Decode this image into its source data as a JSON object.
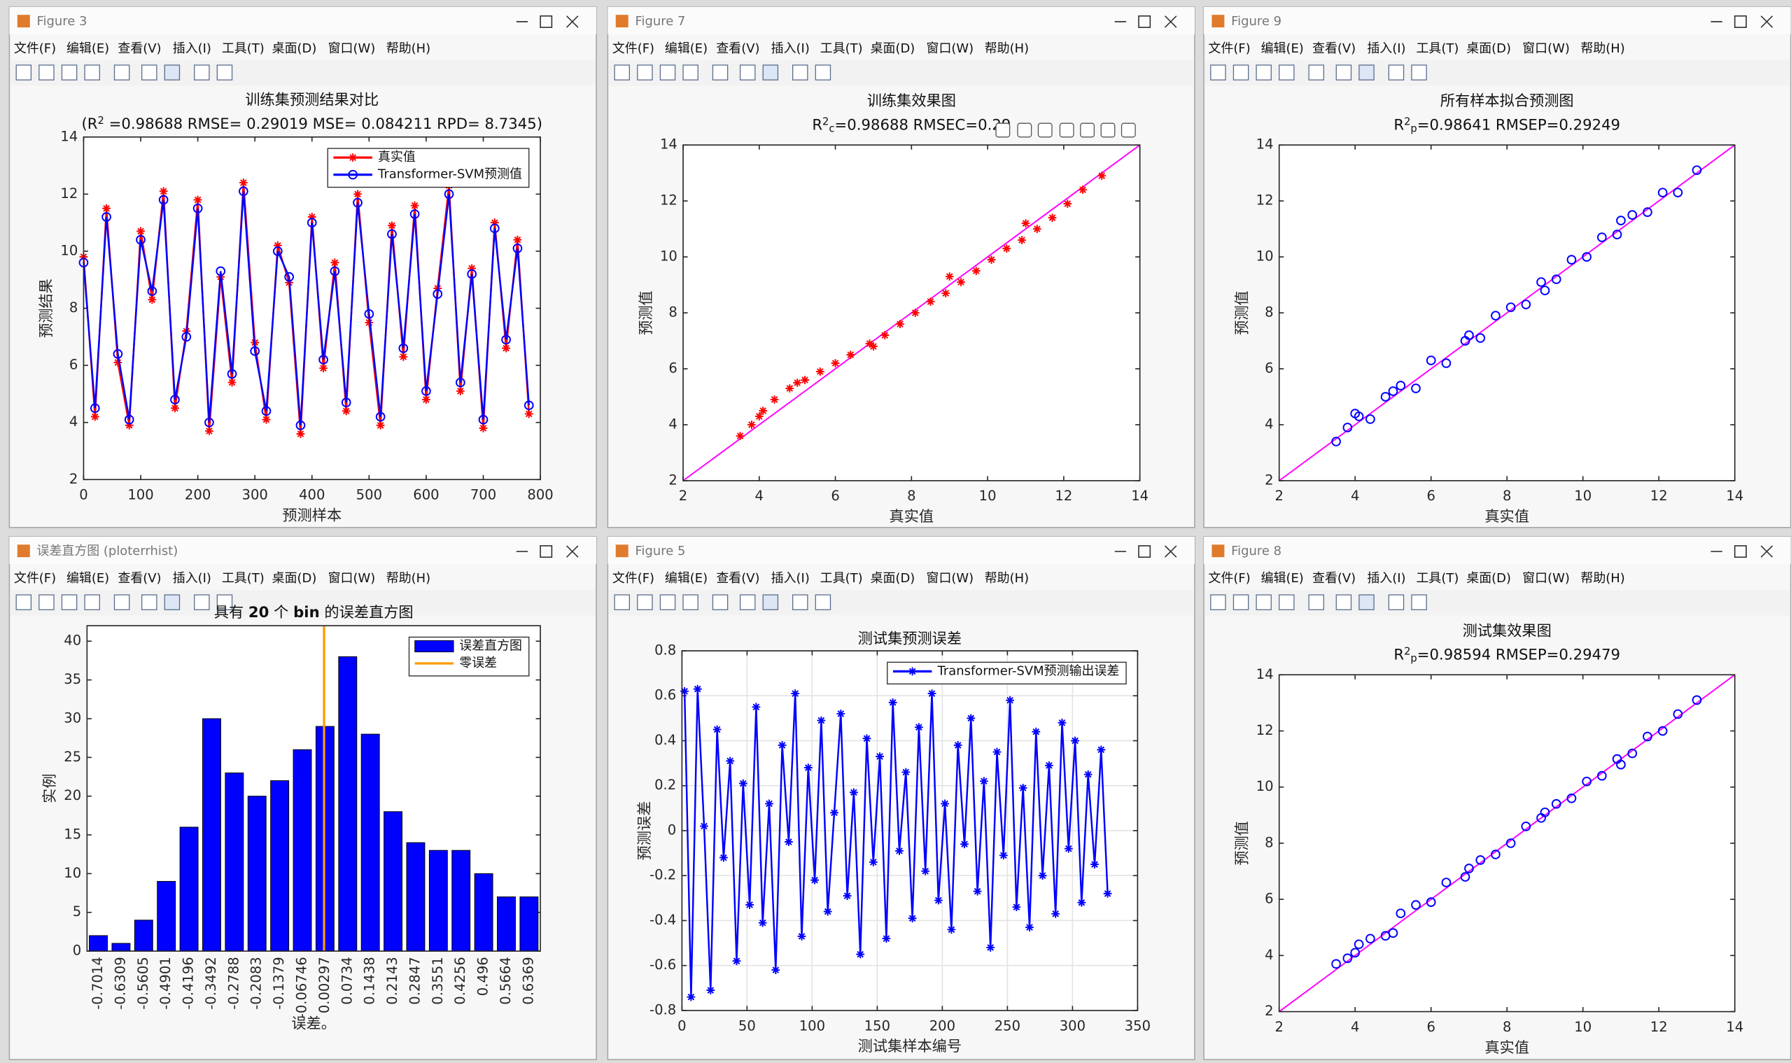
{
  "menu": [
    "文件(F)",
    "编辑(E)",
    "查看(V)",
    "插入(I)",
    "工具(T)",
    "桌面(D)",
    "窗口(W)",
    "帮助(H)"
  ],
  "windows": [
    {
      "title": "Figure 3"
    },
    {
      "title": "Figure 7",
      "active": true
    },
    {
      "title": "Figure 9"
    },
    {
      "title": "误差直方图 (ploterrhist)"
    },
    {
      "title": "Figure 5"
    },
    {
      "title": "Figure 8"
    }
  ],
  "chart_data": [
    {
      "type": "line",
      "title": "训练集预测结果对比",
      "subtitle": [
        {
          "text": "(R"
        },
        {
          "text": "2",
          "shift": "super"
        },
        {
          "text": " =0.98688 RMSE= 0.29019 MSE= 0.084211 RPD= 8.7345)"
        }
      ],
      "xlabel": "预测样本",
      "ylabel": "预测结果",
      "x": [
        0,
        20,
        40,
        60,
        80,
        100,
        120,
        140,
        160,
        180,
        200,
        220,
        240,
        260,
        280,
        300,
        320,
        340,
        360,
        380,
        400,
        420,
        440,
        460,
        480,
        500,
        520,
        540,
        560,
        580,
        600,
        620,
        640,
        660,
        680,
        700,
        720,
        740,
        760,
        780
      ],
      "series": [
        {
          "name": "真实值",
          "color": "#ff0000",
          "marker": "star",
          "values": [
            9.8,
            4.2,
            11.5,
            6.1,
            3.9,
            10.7,
            8.3,
            12.1,
            4.5,
            7.2,
            11.8,
            3.7,
            9.1,
            5.4,
            12.4,
            6.8,
            4.1,
            10.2,
            8.9,
            3.6,
            11.2,
            5.9,
            9.6,
            4.4,
            12.0,
            7.5,
            3.9,
            10.9,
            6.3,
            11.6,
            4.8,
            8.7,
            12.3,
            5.1,
            9.4,
            3.8,
            11.0,
            6.6,
            10.4,
            4.3
          ]
        },
        {
          "name": "Transformer-SVM预测值",
          "color": "#0000ff",
          "marker": "circle",
          "values": [
            9.6,
            4.5,
            11.2,
            6.4,
            4.1,
            10.4,
            8.6,
            11.8,
            4.8,
            7.0,
            11.5,
            4.0,
            9.3,
            5.7,
            12.1,
            6.5,
            4.4,
            10.0,
            9.1,
            3.9,
            11.0,
            6.2,
            9.3,
            4.7,
            11.7,
            7.8,
            4.2,
            10.6,
            6.6,
            11.3,
            5.1,
            8.5,
            12.0,
            5.4,
            9.2,
            4.1,
            10.8,
            6.9,
            10.1,
            4.6
          ]
        }
      ],
      "xlim": [
        0,
        800
      ],
      "xticks": [
        0,
        100,
        200,
        300,
        400,
        500,
        600,
        700,
        800
      ],
      "ylim": [
        2,
        14
      ],
      "yticks": [
        2,
        4,
        6,
        8,
        10,
        12,
        14
      ],
      "grid": false,
      "legend": "northeast"
    },
    {
      "type": "scatter",
      "title": "训练集效果图",
      "subtitle": [
        {
          "text": "R"
        },
        {
          "text": "2",
          "shift": "super"
        },
        {
          "text": "c",
          "shift": "sub"
        },
        {
          "text": "=0.98688  RMSEC=0.29"
        }
      ],
      "xlabel": "真实值",
      "ylabel": "预测值",
      "color": "#ff0000",
      "marker": "star",
      "x": [
        3.5,
        3.8,
        4.1,
        4.4,
        4.8,
        5.2,
        5.6,
        6.0,
        6.4,
        6.9,
        7.3,
        7.7,
        8.1,
        8.5,
        8.9,
        9.3,
        9.7,
        10.1,
        10.5,
        10.9,
        11.3,
        11.7,
        12.1,
        12.5,
        13.0,
        4.0,
        5.0,
        7.0,
        9.0,
        11.0
      ],
      "values": [
        3.6,
        4.0,
        4.5,
        4.9,
        5.3,
        5.6,
        5.9,
        6.2,
        6.5,
        6.9,
        7.2,
        7.6,
        8.0,
        8.4,
        8.7,
        9.1,
        9.5,
        9.9,
        10.3,
        10.6,
        11.0,
        11.4,
        11.9,
        12.4,
        12.9,
        4.3,
        5.5,
        6.8,
        9.3,
        11.2
      ],
      "reference_line": {
        "x": [
          2,
          14
        ],
        "values": [
          2,
          14
        ],
        "color": "#ff00ff"
      },
      "xlim": [
        2,
        14
      ],
      "xticks": [
        2,
        4,
        6,
        8,
        10,
        12,
        14
      ],
      "ylim": [
        2,
        14
      ],
      "yticks": [
        2,
        4,
        6,
        8,
        10,
        12,
        14
      ],
      "grid": false
    },
    {
      "type": "scatter",
      "title": "所有样本拟合预测图",
      "subtitle": [
        {
          "text": "R"
        },
        {
          "text": "2",
          "shift": "super"
        },
        {
          "text": "p",
          "shift": "sub"
        },
        {
          "text": "=0.98641  RMSEP=0.29249"
        }
      ],
      "xlabel": "真实值",
      "ylabel": "预测值",
      "color": "#0000ff",
      "marker": "circle",
      "x": [
        3.5,
        3.8,
        4.1,
        4.4,
        4.8,
        5.2,
        5.6,
        6.0,
        6.4,
        6.9,
        7.3,
        7.7,
        8.1,
        8.5,
        8.9,
        9.3,
        9.7,
        10.1,
        10.5,
        10.9,
        11.3,
        11.7,
        12.1,
        12.5,
        13.0,
        4.0,
        5.0,
        7.0,
        9.0,
        11.0
      ],
      "values": [
        3.4,
        3.9,
        4.3,
        4.2,
        5.0,
        5.4,
        5.3,
        6.3,
        6.2,
        7.0,
        7.1,
        7.9,
        8.2,
        8.3,
        9.1,
        9.2,
        9.9,
        10.0,
        10.7,
        10.8,
        11.5,
        11.6,
        12.3,
        12.3,
        13.1,
        4.4,
        5.2,
        7.2,
        8.8,
        11.3
      ],
      "reference_line": {
        "x": [
          2,
          14
        ],
        "values": [
          2,
          14
        ],
        "color": "#ff00ff"
      },
      "xlim": [
        2,
        14
      ],
      "xticks": [
        2,
        4,
        6,
        8,
        10,
        12,
        14
      ],
      "ylim": [
        2,
        14
      ],
      "yticks": [
        2,
        4,
        6,
        8,
        10,
        12,
        14
      ],
      "grid": false
    },
    {
      "type": "bar",
      "title": [
        {
          "text": "具有 "
        },
        {
          "text": "20",
          "bold": true
        },
        {
          "text": " 个 "
        },
        {
          "text": "bin",
          "bold": true
        },
        {
          "text": " 的误差直方图"
        }
      ],
      "xlabel": "误差。",
      "ylabel": "实例",
      "categories": [
        "-0.7014",
        "-0.6309",
        "-0.5605",
        "-0.4901",
        "-0.4196",
        "-0.3492",
        "-0.2788",
        "-0.2083",
        "-0.1379",
        "-0.06746",
        "0.00297",
        "0.0734",
        "0.1438",
        "0.2143",
        "0.2847",
        "0.3551",
        "0.4256",
        "0.496",
        "0.5664",
        "0.6369"
      ],
      "series": [
        {
          "name": "误差直方图",
          "color": "#0000ff",
          "values": [
            2,
            1,
            4,
            9,
            16,
            30,
            23,
            20,
            22,
            26,
            29,
            38,
            28,
            18,
            14,
            13,
            13,
            10,
            7,
            7
          ]
        }
      ],
      "zero_line": {
        "name": "零误差",
        "color": "#ff9900",
        "value": 0
      },
      "ylim": [
        0,
        42
      ],
      "yticks": [
        0,
        5,
        10,
        15,
        20,
        25,
        30,
        35,
        40
      ],
      "grid": false,
      "legend": "northeast"
    },
    {
      "type": "line",
      "title": "测试集预测误差",
      "xlabel": "测试集样本编号",
      "ylabel": "预测误差",
      "x": [
        2,
        7,
        12,
        17,
        22,
        27,
        32,
        37,
        42,
        47,
        52,
        57,
        62,
        67,
        72,
        77,
        82,
        87,
        92,
        97,
        102,
        107,
        112,
        117,
        122,
        127,
        132,
        137,
        142,
        147,
        152,
        157,
        162,
        167,
        172,
        177,
        182,
        187,
        192,
        197,
        202,
        207,
        212,
        217,
        222,
        227,
        232,
        237,
        242,
        247,
        252,
        257,
        262,
        267,
        272,
        277,
        282,
        287,
        292,
        297,
        302,
        307,
        312,
        317,
        322,
        327
      ],
      "series": [
        {
          "name": "Transformer-SVM预测输出误差",
          "color": "#0000ff",
          "marker": "star",
          "values": [
            0.62,
            -0.74,
            0.63,
            0.02,
            -0.71,
            0.45,
            -0.12,
            0.31,
            -0.58,
            0.21,
            -0.33,
            0.55,
            -0.41,
            0.12,
            -0.62,
            0.38,
            -0.05,
            0.61,
            -0.47,
            0.28,
            -0.22,
            0.49,
            -0.36,
            0.08,
            0.52,
            -0.29,
            0.17,
            -0.55,
            0.41,
            -0.14,
            0.33,
            -0.48,
            0.57,
            -0.09,
            0.26,
            -0.39,
            0.46,
            -0.18,
            0.61,
            -0.31,
            0.12,
            -0.44,
            0.38,
            -0.06,
            0.5,
            -0.27,
            0.22,
            -0.52,
            0.35,
            -0.11,
            0.58,
            -0.34,
            0.19,
            -0.43,
            0.44,
            -0.2,
            0.29,
            -0.37,
            0.48,
            -0.08,
            0.4,
            -0.32,
            0.25,
            -0.15,
            0.36,
            -0.28
          ]
        }
      ],
      "xlim": [
        0,
        350
      ],
      "xticks": [
        0,
        50,
        100,
        150,
        200,
        250,
        300,
        350
      ],
      "ylim": [
        -0.8,
        0.8
      ],
      "yticks": [
        -0.8,
        -0.6,
        -0.4,
        -0.2,
        0,
        0.2,
        0.4,
        0.6,
        0.8
      ],
      "grid": true,
      "legend": "northeast"
    },
    {
      "type": "scatter",
      "title": "测试集效果图",
      "subtitle": [
        {
          "text": "R"
        },
        {
          "text": "2",
          "shift": "super"
        },
        {
          "text": "p",
          "shift": "sub"
        },
        {
          "text": "=0.98594  RMSEP=0.29479"
        }
      ],
      "xlabel": "真实值",
      "ylabel": "预测值",
      "color": "#0000ff",
      "marker": "circle",
      "x": [
        3.5,
        3.8,
        4.1,
        4.4,
        4.8,
        5.2,
        5.6,
        6.0,
        6.4,
        6.9,
        7.3,
        7.7,
        8.1,
        8.5,
        8.9,
        9.3,
        9.7,
        10.1,
        10.5,
        10.9,
        11.3,
        11.7,
        12.1,
        12.5,
        13.0,
        4.0,
        5.0,
        7.0,
        9.0,
        11.0
      ],
      "values": [
        3.7,
        3.9,
        4.4,
        4.6,
        4.7,
        5.5,
        5.8,
        5.9,
        6.6,
        6.8,
        7.4,
        7.6,
        8.0,
        8.6,
        8.9,
        9.4,
        9.6,
        10.2,
        10.4,
        11.0,
        11.2,
        11.8,
        12.0,
        12.6,
        13.1,
        4.1,
        4.8,
        7.1,
        9.1,
        10.8
      ],
      "reference_line": {
        "x": [
          2,
          14
        ],
        "values": [
          2,
          14
        ],
        "color": "#ff00ff"
      },
      "xlim": [
        2,
        14
      ],
      "xticks": [
        2,
        4,
        6,
        8,
        10,
        12,
        14
      ],
      "ylim": [
        2,
        14
      ],
      "yticks": [
        2,
        4,
        6,
        8,
        10,
        12,
        14
      ],
      "grid": false
    }
  ]
}
